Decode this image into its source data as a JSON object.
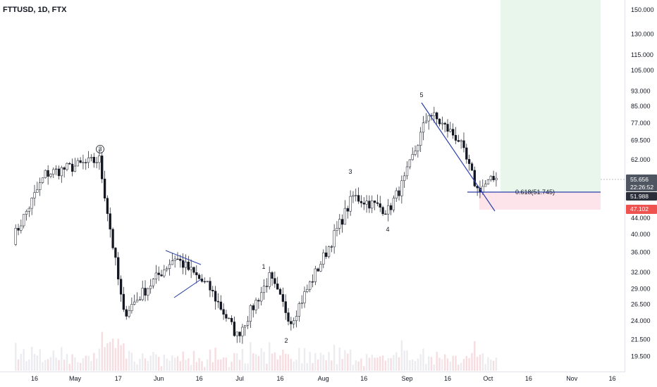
{
  "header": {
    "title": "FTTUSD, 1D, FTX"
  },
  "price_axis": {
    "current_price": "55.656",
    "countdown": "22:26:52",
    "level_price": "51.988",
    "stop_price": "47.102",
    "colors": {
      "current": "#505661",
      "level": "#2a2e39",
      "stop": "#ef5350"
    }
  },
  "annotations": {
    "wave_labels": [
      "3",
      "1",
      "2",
      "3",
      "4",
      "5"
    ],
    "fib_label": "0.618(51.745)",
    "colors": {
      "trendline": "#2a3fa8",
      "long_target_zone": "#e8f6ec",
      "stop_zone": "#fde3ea"
    }
  },
  "chart_data": {
    "type": "candlestick",
    "title": "FTTUSD, 1D, FTX",
    "y_scale": "log",
    "ylim": [
      18.5,
      155
    ],
    "y_ticks": [
      "150.000",
      "130.000",
      "115.000",
      "105.000",
      "93.000",
      "85.000",
      "77.000",
      "69.500",
      "62.000",
      "51.988",
      "44.000",
      "40.000",
      "36.000",
      "32.000",
      "29.000",
      "26.500",
      "24.000",
      "21.500",
      "19.500"
    ],
    "x_ticks": [
      "16",
      "May",
      "17",
      "Jun",
      "16",
      "Jul",
      "16",
      "Aug",
      "16",
      "Sep",
      "16",
      "Oct",
      "16",
      "Nov",
      "16"
    ],
    "candle_colors": {
      "up": "#ffffff",
      "down": "#131722",
      "wick": "#131722"
    },
    "key_points": [
      {
        "date": "2021-04-08",
        "price": 39.0
      },
      {
        "date": "2021-04-20",
        "price": 57.0
      },
      {
        "date": "2021-05-10",
        "price": 62.0
      },
      {
        "date": "2021-05-19",
        "price": 25.0
      },
      {
        "date": "2021-06-07",
        "price": 35.0
      },
      {
        "date": "2021-06-20",
        "price": 29.0
      },
      {
        "date": "2021-06-30",
        "price": 22.0
      },
      {
        "date": "2021-07-12",
        "price": 31.0
      },
      {
        "date": "2021-07-20",
        "price": 24.0
      },
      {
        "date": "2021-08-02",
        "price": 36.0
      },
      {
        "date": "2021-08-12",
        "price": 50.0
      },
      {
        "date": "2021-08-25",
        "price": 46.0
      },
      {
        "date": "2021-08-31",
        "price": 55.0
      },
      {
        "date": "2021-09-09",
        "price": 82.0
      },
      {
        "date": "2021-09-20",
        "price": 70.0
      },
      {
        "date": "2021-09-27",
        "price": 52.0
      },
      {
        "date": "2021-10-04",
        "price": 55.656
      }
    ]
  }
}
